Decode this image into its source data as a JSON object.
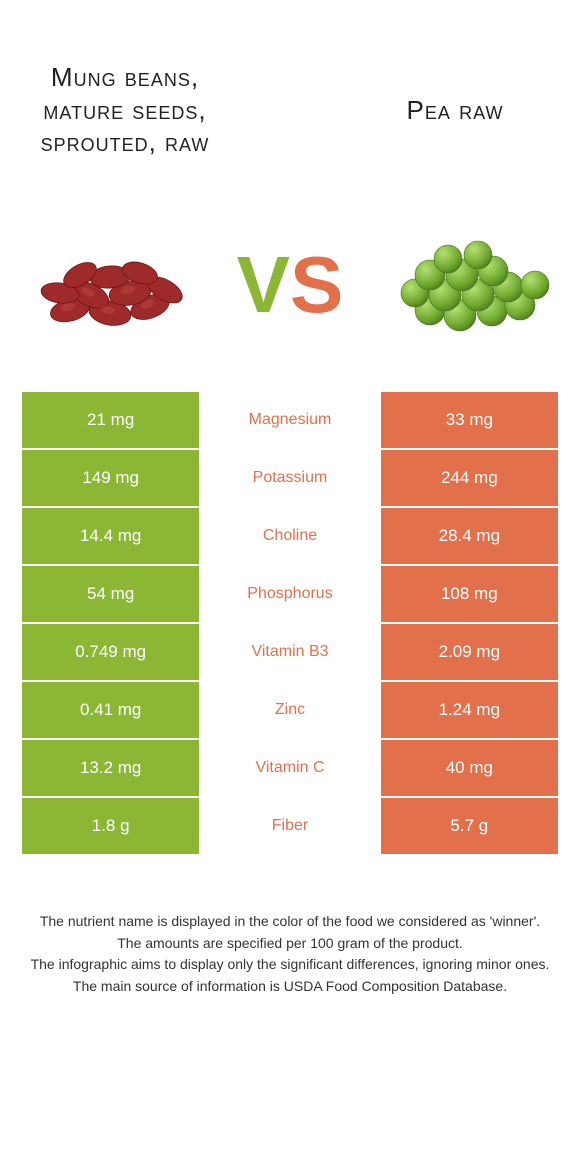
{
  "left_food": {
    "title": "Mung beans, mature seeds, sprouted, raw",
    "color": "#8b1a1a"
  },
  "right_food": {
    "title": "Pea raw",
    "color": "#6fa82e"
  },
  "vs_colors": {
    "v": "#8bb735",
    "s": "#e2704a"
  },
  "table": {
    "left_bg": "#8bb735",
    "right_bg": "#e2704a",
    "rows": [
      {
        "left": "21 mg",
        "name": "Magnesium",
        "right": "33 mg",
        "winner": "orange"
      },
      {
        "left": "149 mg",
        "name": "Potassium",
        "right": "244 mg",
        "winner": "orange"
      },
      {
        "left": "14.4 mg",
        "name": "Choline",
        "right": "28.4 mg",
        "winner": "orange"
      },
      {
        "left": "54 mg",
        "name": "Phosphorus",
        "right": "108 mg",
        "winner": "orange"
      },
      {
        "left": "0.749 mg",
        "name": "Vitamin B3",
        "right": "2.09 mg",
        "winner": "orange"
      },
      {
        "left": "0.41 mg",
        "name": "Zinc",
        "right": "1.24 mg",
        "winner": "orange"
      },
      {
        "left": "13.2 mg",
        "name": "Vitamin C",
        "right": "40 mg",
        "winner": "orange"
      },
      {
        "left": "1.8 g",
        "name": "Fiber",
        "right": "5.7 g",
        "winner": "orange"
      }
    ]
  },
  "footer": {
    "l1": "The nutrient name is displayed in the color of the food we considered as 'winner'.",
    "l2": "The amounts are specified per 100 gram of the product.",
    "l3": "The infographic aims to display only the significant differences, ignoring minor ones.",
    "l4": "The main source of information is USDA Food Composition Database."
  }
}
